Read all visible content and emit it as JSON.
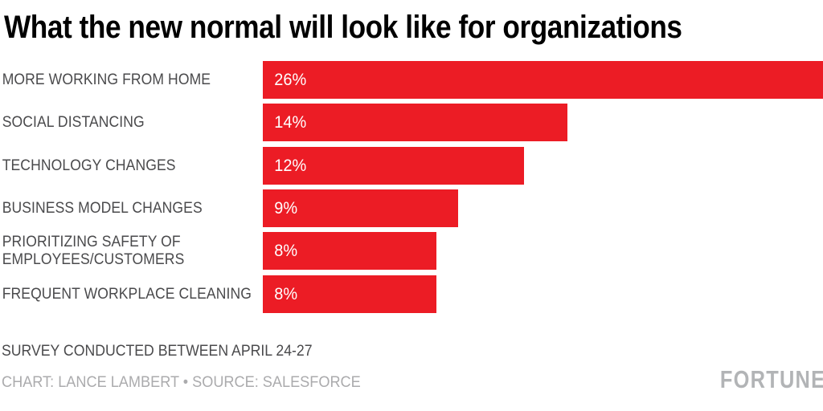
{
  "title": "What the new normal will look like for organizations",
  "chart_data": {
    "type": "bar",
    "orientation": "horizontal",
    "title": "What the new normal will look like for organizations",
    "categories": [
      "MORE WORKING FROM HOME",
      "SOCIAL DISTANCING",
      "TECHNOLOGY CHANGES",
      "BUSINESS MODEL CHANGES",
      "PRIORITIZING SAFETY OF\nEMPLOYEES/CUSTOMERS",
      "FREQUENT WORKPLACE CLEANING"
    ],
    "values": [
      26,
      14,
      12,
      9,
      8,
      8
    ],
    "value_labels": [
      "26%",
      "14%",
      "12%",
      "9%",
      "8%",
      "8%"
    ],
    "unit": "%",
    "xlim": [
      0,
      26
    ],
    "grid": "off",
    "legend": "none",
    "bar_color": "#ec1c25",
    "value_label_color": "#ffffff",
    "category_label_color": "#4a4a4c"
  },
  "footer": {
    "note": "SURVEY CONDUCTED BETWEEN APRIL 24-27",
    "credit": "CHART: LANCE LAMBERT • SOURCE: SALESFORCE",
    "brand": "FORTUNE"
  }
}
